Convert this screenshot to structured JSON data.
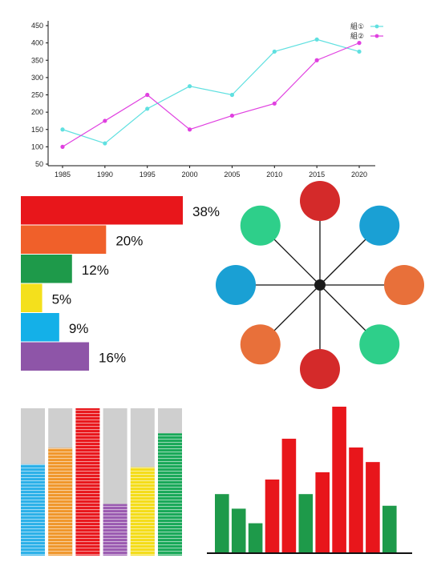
{
  "chart_data": [
    {
      "type": "line",
      "x": [
        1985,
        1990,
        1995,
        2000,
        2005,
        2010,
        2015,
        2020
      ],
      "ylim": [
        50,
        450
      ],
      "yticks": [
        50,
        100,
        150,
        200,
        250,
        300,
        350,
        400,
        450
      ],
      "legend_position": "top-right",
      "grid": false,
      "series": [
        {
          "name": "組①",
          "color": "#5fe0e0",
          "values": [
            150,
            110,
            210,
            275,
            250,
            375,
            410,
            375
          ]
        },
        {
          "name": "組②",
          "color": "#e040e0",
          "values": [
            100,
            175,
            250,
            150,
            190,
            225,
            350,
            400
          ]
        }
      ]
    },
    {
      "type": "bar",
      "orientation": "horizontal",
      "values": [
        38,
        20,
        12,
        5,
        9,
        16
      ],
      "labels": [
        "38%",
        "20%",
        "12%",
        "5%",
        "9%",
        "16%"
      ],
      "colors": [
        "#e8161b",
        "#f0602a",
        "#1e9a4a",
        "#f4e01c",
        "#14b0e8",
        "#8e55a8"
      ]
    },
    {
      "type": "diagram",
      "nodes": 8,
      "node_colors": [
        "#d42a2a",
        "#1aa0d4",
        "#e8703a",
        "#2ecf8a",
        "#d42a2a",
        "#e8703a",
        "#1aa0d4",
        "#2ecf8a"
      ]
    },
    {
      "type": "bar",
      "stacked": true,
      "values": [
        0.62,
        0.73,
        1.0,
        0.35,
        0.6,
        0.83
      ],
      "fill_colors": [
        "#2ab0e8",
        "#f0962a",
        "#e8161b",
        "#9a5ab0",
        "#f4dc18",
        "#18a858"
      ],
      "track_color": "#cfcfcf"
    },
    {
      "type": "bar",
      "values": [
        40,
        30,
        20,
        50,
        78,
        40,
        55,
        100,
        72,
        62,
        32
      ],
      "colors": [
        "#1e9a4a",
        "#1e9a4a",
        "#1e9a4a",
        "#e8161b",
        "#e8161b",
        "#1e9a4a",
        "#e8161b",
        "#e8161b",
        "#e8161b",
        "#e8161b",
        "#1e9a4a"
      ]
    }
  ]
}
